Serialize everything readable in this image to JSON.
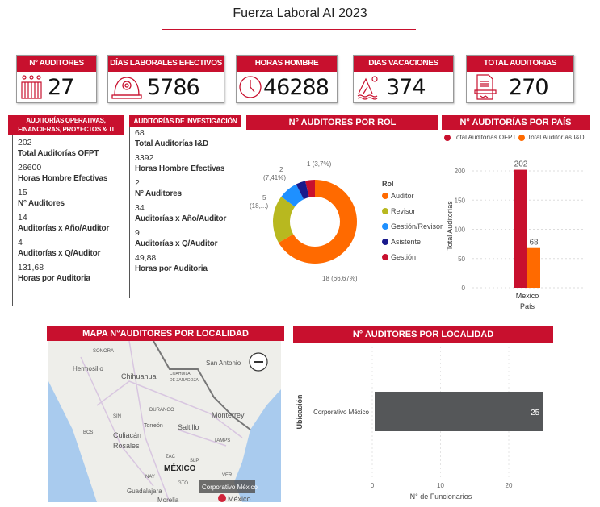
{
  "header": {
    "title": "Fuerza Laboral AI 2023"
  },
  "kpis": [
    {
      "label": "N° AUDITORES",
      "value": "27",
      "icon": "people-icon"
    },
    {
      "label": "DÍAS LABORALES EFECTIVOS",
      "value": "5786",
      "icon": "hard-hat-icon"
    },
    {
      "label": "HORAS HOMBRE",
      "value": "46288",
      "icon": "clock-icon"
    },
    {
      "label": "DIAS VACACIONES",
      "value": "374",
      "icon": "mountain-sun-icon"
    },
    {
      "label": "TOTAL AUDITORIAS",
      "value": "270",
      "icon": "document-icon"
    }
  ],
  "ofpt": {
    "title_line1": "AUDITORÍAS OPERATIVAS,",
    "title_line2": "FINANCIERAS, PROYECTOS & TI",
    "items": [
      {
        "value": "202",
        "label": "Total Auditorías OFPT"
      },
      {
        "value": "26600",
        "label": "Horas Hombre Efectivas"
      },
      {
        "value": "15",
        "label": "N° Auditores"
      },
      {
        "value": "14",
        "label": "Auditorías x Año/Auditor"
      },
      {
        "value": "4",
        "label": "Auditorías x Q/Auditor"
      },
      {
        "value": "131,68",
        "label": "Horas por Auditoria"
      }
    ]
  },
  "id": {
    "title": "AUDITORÍAS DE INVESTIGACIÓN",
    "items": [
      {
        "value": "68",
        "label": "Total Auditorías I&D"
      },
      {
        "value": "3392",
        "label": "Horas Hombre Efectivas"
      },
      {
        "value": "2",
        "label": "N° Auditores"
      },
      {
        "value": "34",
        "label": "Auditorías x Año/Auditor"
      },
      {
        "value": "9",
        "label": "Auditorías x Q/Auditor"
      },
      {
        "value": "49,88",
        "label": "Horas por Auditoria"
      }
    ]
  },
  "rol": {
    "title": "N° AUDITORES POR ROL",
    "legend_title": "Rol",
    "labels": {
      "auditor": "18 (66,67%)",
      "revisor_a": "5",
      "revisor_b": "(18,...)",
      "gr_a": "2",
      "gr_b": "(7,41%)",
      "gestion": "1 (3,7%)"
    }
  },
  "pais": {
    "title": "N° AUDITORÍAS POR PAÍS"
  },
  "map": {
    "title": "MAPA N°AUDITORES POR LOCALIDAD",
    "labels": [
      "SONORA",
      "Hermosillo",
      "Chihuahua",
      "COAHUILA",
      "DE ZARAGOZA",
      "San Antonio",
      "Monterrey",
      "DURANGO",
      "SIN",
      "Torreón",
      "Saltillo",
      "BCS",
      "Culiacán",
      "Rosales",
      "TAMPS",
      "ZAC",
      "SLP",
      "MÉXICO",
      "NAY",
      "GTO",
      "VER",
      "Guadalajara",
      "Morelia",
      "México"
    ],
    "tooltip": "Corporativo México"
  },
  "loc": {
    "title": "N° AUDITORES POR LOCALIDAD"
  },
  "chart_data": [
    {
      "type": "pie",
      "title": "N° AUDITORES POR ROL",
      "legend_title": "Rol",
      "categories": [
        "Auditor",
        "Revisor",
        "Gestión/Revisor",
        "Asistente",
        "Gestión"
      ],
      "values": [
        18,
        5,
        2,
        1,
        1
      ],
      "colors": [
        "#ff6a00",
        "#b8b81f",
        "#1e90ff",
        "#1a1a8c",
        "#c8102e"
      ],
      "legend": "right"
    },
    {
      "type": "bar",
      "title": "N° AUDITORÍAS POR PAÍS",
      "categories": [
        "Mexico"
      ],
      "series": [
        {
          "name": "Total Auditorías OFPT",
          "values": [
            202
          ],
          "color": "#c8102e"
        },
        {
          "name": "Total Auditorías I&D",
          "values": [
            68
          ],
          "color": "#ff6a00"
        }
      ],
      "xlabel": "País",
      "ylabel": "Total Auditorías",
      "ylim": [
        0,
        200
      ],
      "yticks": [
        "0",
        "50",
        "100",
        "150",
        "200"
      ],
      "legend": "top-left",
      "grid": true
    },
    {
      "type": "bar",
      "orientation": "horizontal",
      "title": "N° AUDITORES POR LOCALIDAD",
      "categories": [
        "Corporativo México"
      ],
      "values": [
        25
      ],
      "color": "#555759",
      "xlabel": "N° de Funcionarios",
      "ylabel": "Ubicación",
      "xticks": [
        "0",
        "10",
        "20"
      ],
      "grid": true
    }
  ]
}
